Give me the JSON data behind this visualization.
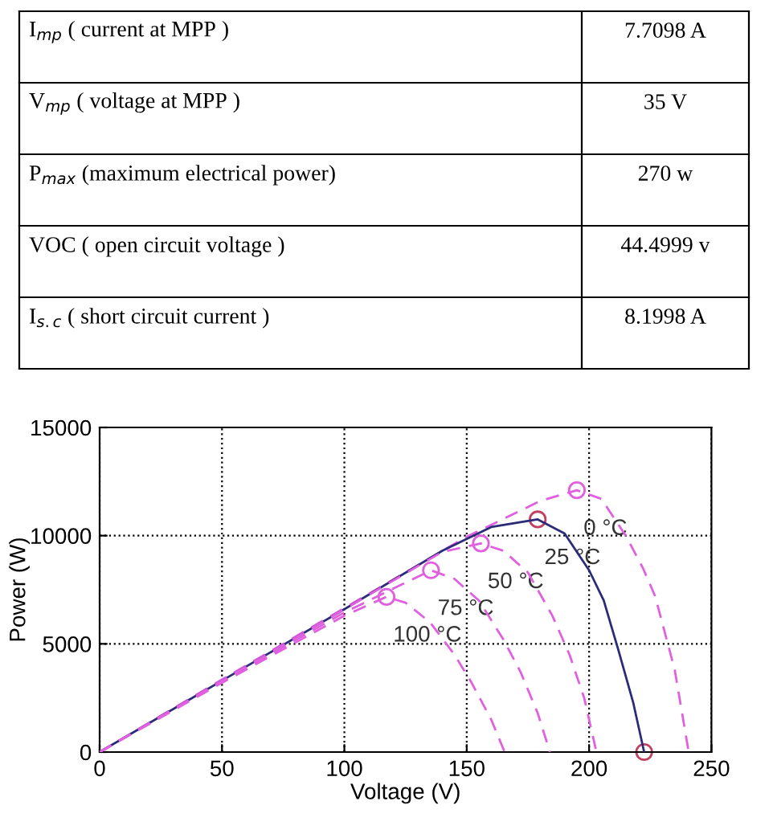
{
  "chart_data": {
    "type": "line",
    "xlabel": "Voltage (V)",
    "ylabel": "Power (W)",
    "xlim": [
      0,
      250
    ],
    "ylim": [
      0,
      15000
    ],
    "xticks": [
      0,
      50,
      100,
      150,
      200,
      250
    ],
    "yticks": [
      0,
      5000,
      10000,
      15000
    ],
    "grid": true,
    "annotations": [
      "I$_{mp}$ ( current at MPP )",
      "7.7098 A",
      "V$_{mp}$ ( voltage at MPP )",
      "35 V",
      "P$_{max}$ (maximum electrical power)",
      "270 w",
      "VOC ( open circuit voltage )",
      "44.4999 v",
      "I$_{s.c}$ ( short circuit current )",
      "8.1998 A"
    ],
    "series": [
      {
        "name": "0 °C",
        "color": "#e060e0",
        "line_style": "dashed",
        "x": [
          0,
          50,
          100,
          150,
          180,
          195,
          205,
          215,
          222,
          227,
          235,
          240.7
        ],
        "values": [
          0,
          3350,
          6650,
          9950,
          11600,
          12100,
          11700,
          10000,
          8500,
          7200,
          3800,
          0
        ]
      },
      {
        "name": "25 °C",
        "color": "#2b2b7a",
        "line_style": "solid",
        "x": [
          0,
          50,
          100,
          140,
          160,
          179,
          190,
          200,
          206,
          212,
          218,
          222.5
        ],
        "values": [
          0,
          3300,
          6600,
          9300,
          10400,
          10750,
          10100,
          8400,
          7000,
          4700,
          2300,
          0
        ]
      },
      {
        "name": "50 °C",
        "color": "#e060e0",
        "line_style": "dashed",
        "x": [
          0,
          50,
          100,
          140,
          155.8,
          165,
          175,
          185,
          192,
          198,
          203
        ],
        "values": [
          0,
          3300,
          6600,
          9250,
          9640,
          9300,
          8300,
          6300,
          4500,
          2500,
          0
        ]
      },
      {
        "name": "75 °C",
        "color": "#e060e0",
        "line_style": "dashed",
        "x": [
          0,
          50,
          100,
          135.4,
          145,
          155,
          165,
          172,
          179,
          184
        ],
        "values": [
          0,
          3250,
          6450,
          8400,
          8000,
          7000,
          5200,
          3700,
          1800,
          0
        ]
      },
      {
        "name": "100 °C",
        "color": "#e060e0",
        "line_style": "dashed",
        "x": [
          0,
          50,
          100,
          117.2,
          125,
          135,
          145,
          152,
          160,
          165.5
        ],
        "values": [
          0,
          3200,
          6300,
          7170,
          6900,
          6000,
          4500,
          3200,
          1500,
          0
        ]
      },
      {
        "type": "scatter",
        "marker": "circle",
        "x": [
          195,
          179,
          155.8,
          135.4,
          117.2,
          222.5
        ],
        "values": [
          12100,
          10750,
          9640,
          8400,
          7170,
          0
        ],
        "colors": [
          "#e060e0",
          "#c04060",
          "#e060e0",
          "#e060e0",
          "#e060e0",
          "#c04060"
        ]
      }
    ]
  }
}
